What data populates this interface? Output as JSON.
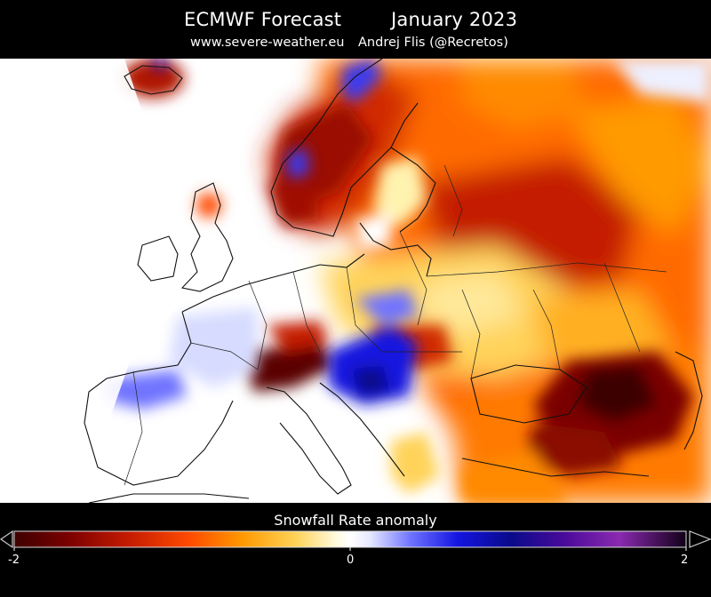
{
  "header": {
    "title_left": "ECMWF Forecast",
    "title_right": "January 2023",
    "subtitle_left": "www.severe-weather.eu",
    "subtitle_right": "Andrej Flis (@Recretos)"
  },
  "map": {
    "variable": "Snowfall Rate anomaly",
    "region": "Europe"
  },
  "colorbar": {
    "title": "Snowfall Rate anomaly",
    "tick_min": "-2",
    "tick_zero": "0",
    "tick_max": "2",
    "colors": [
      "#3d0000",
      "#7a0000",
      "#c41b00",
      "#ff4a00",
      "#ff9a00",
      "#ffd35a",
      "#fffbe0",
      "#ffffff",
      "#e6e8ff",
      "#6f73ff",
      "#1414e0",
      "#0a0a8a",
      "#4a0a9a",
      "#8a2ab0",
      "#120018"
    ]
  }
}
